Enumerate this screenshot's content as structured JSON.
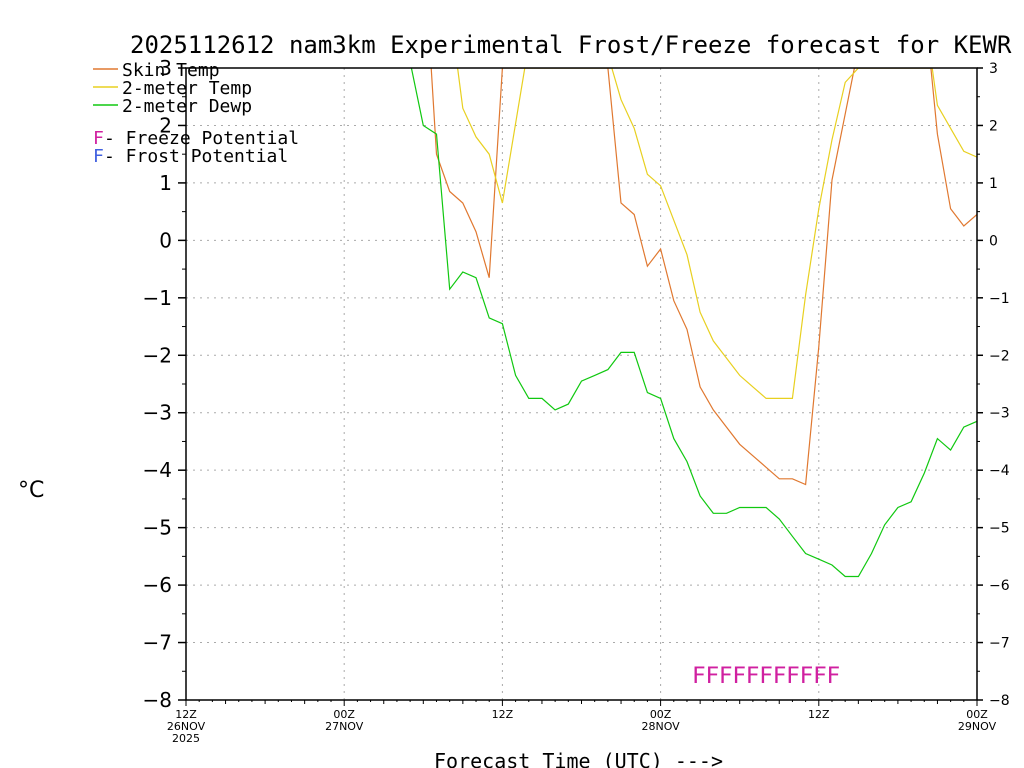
{
  "chart_data": {
    "type": "line",
    "title": "2025112612 nam3km Experimental Frost/Freeze forecast for KEWR",
    "xlabel": "Forecast Time (UTC) --->",
    "ylabel": "°C",
    "ylim": [
      -8,
      3
    ],
    "xlim": [
      0,
      60
    ],
    "yticks": [
      "3",
      "2",
      "1",
      "0",
      "−1",
      "−2",
      "−3",
      "−4",
      "−5",
      "−6",
      "−7",
      "−8"
    ],
    "ytick_values": [
      3,
      2,
      1,
      0,
      -1,
      -2,
      -3,
      -4,
      -5,
      -6,
      -7,
      -8
    ],
    "xticks": [
      {
        "hour": 0,
        "line1": "12Z",
        "line2": "26NOV",
        "line3": "2025"
      },
      {
        "hour": 12,
        "line1": "00Z",
        "line2": "27NOV",
        "line3": ""
      },
      {
        "hour": 24,
        "line1": "12Z",
        "line2": "",
        "line3": ""
      },
      {
        "hour": 36,
        "line1": "00Z",
        "line2": "28NOV",
        "line3": ""
      },
      {
        "hour": 48,
        "line1": "12Z",
        "line2": "",
        "line3": ""
      },
      {
        "hour": 60,
        "line1": "00Z",
        "line2": "29NOV",
        "line3": ""
      }
    ],
    "grid": true,
    "legend": [
      {
        "label": "Skin Temp",
        "color": "#e07830"
      },
      {
        "label": "2-meter Temp",
        "color": "#e8d020"
      },
      {
        "label": "2-meter Dewp",
        "color": "#10c810"
      }
    ],
    "legend_notes": [
      {
        "symbol": "F",
        "text": " - Freeze Potential",
        "color": "#d020a0"
      },
      {
        "symbol": "F",
        "text": " - Frost Potential",
        "color": "#4060e0"
      }
    ],
    "series": [
      {
        "name": "Skin Temp",
        "color": "#e07830",
        "x": [
          18.6,
          19,
          20,
          21,
          22,
          23,
          24,
          25.6,
          32,
          33,
          34,
          35,
          36,
          37,
          38,
          39,
          40,
          41,
          42,
          43,
          44,
          45,
          46,
          47,
          48,
          49,
          50.7,
          56.5,
          57,
          58,
          59,
          60
        ],
        "y": [
          3.0,
          1.5,
          0.85,
          0.65,
          0.15,
          -0.65,
          3.0,
          3.0,
          3.0,
          0.65,
          0.45,
          -0.45,
          -0.15,
          -1.05,
          -1.55,
          -2.55,
          -2.95,
          -3.25,
          -3.55,
          -3.75,
          -3.95,
          -4.15,
          -4.15,
          -4.25,
          -1.85,
          1.05,
          3.0,
          3.0,
          1.85,
          0.55,
          0.25,
          0.45
        ]
      },
      {
        "name": "2-meter Temp",
        "color": "#e8d020",
        "x": [
          20.6,
          21,
          22,
          23,
          24,
          25.7,
          32.3,
          33,
          34,
          35,
          36,
          37,
          38,
          39,
          40,
          41,
          42,
          43,
          44,
          45,
          46,
          47,
          48,
          49,
          50,
          51,
          52.1,
          56.6,
          57,
          58,
          59,
          60
        ],
        "y": [
          3.0,
          2.3,
          1.8,
          1.5,
          0.65,
          3.0,
          3.0,
          2.45,
          1.95,
          1.15,
          0.95,
          0.35,
          -0.25,
          -1.25,
          -1.75,
          -2.05,
          -2.35,
          -2.55,
          -2.75,
          -2.75,
          -2.75,
          -0.95,
          0.55,
          1.75,
          2.75,
          3.0,
          3.0,
          3.0,
          2.35,
          1.95,
          1.55,
          1.45
        ]
      },
      {
        "name": "2-meter Dewp",
        "color": "#10c810",
        "x": [
          17.1,
          18,
          19,
          20,
          21,
          22,
          23,
          24,
          25,
          26,
          27,
          28,
          29,
          30,
          31,
          32,
          33,
          34,
          35,
          36,
          37,
          38,
          39,
          40,
          41,
          42,
          43,
          44,
          45,
          46,
          47,
          48,
          49,
          50,
          51,
          52,
          53,
          54,
          55,
          56,
          57,
          58,
          59,
          60
        ],
        "y": [
          3.0,
          2.0,
          1.85,
          -0.85,
          -0.55,
          -0.65,
          -1.35,
          -1.45,
          -2.35,
          -2.75,
          -2.75,
          -2.95,
          -2.85,
          -2.45,
          -2.35,
          -2.25,
          -1.95,
          -1.95,
          -2.65,
          -2.75,
          -3.45,
          -3.85,
          -4.45,
          -4.75,
          -4.75,
          -4.65,
          -4.65,
          -4.65,
          -4.85,
          -5.15,
          -5.45,
          -5.55,
          -5.65,
          -5.85,
          -5.85,
          -5.45,
          -4.95,
          -4.65,
          -4.55,
          -4.05,
          -3.45,
          -3.65,
          -3.25,
          -3.15
        ]
      }
    ],
    "annotations": [
      {
        "text": "FFFFFFFFFFF",
        "x_start": 38.4,
        "x_end": 49.6,
        "y": -7.55,
        "color": "#d020a0",
        "meaning": "Freeze Potential"
      }
    ]
  }
}
